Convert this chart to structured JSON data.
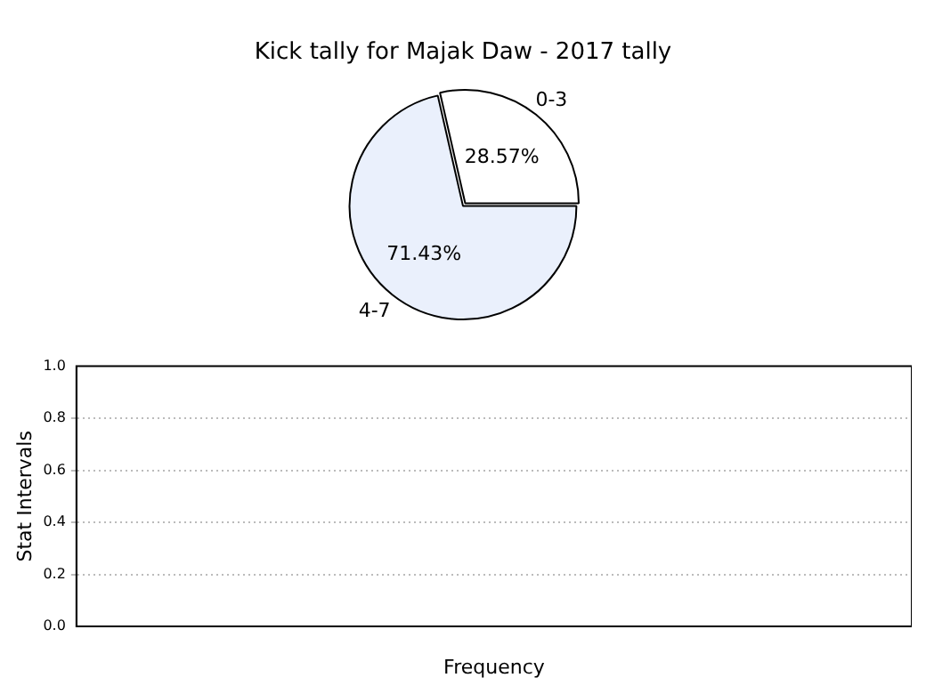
{
  "chart_data": [
    {
      "type": "pie",
      "title": "Kick tally for Majak Daw - 2017 tally",
      "categories": [
        "0-3",
        "4-7"
      ],
      "values": [
        28.57,
        71.43
      ],
      "colors": [
        "#ffffff",
        "#eaf0fc"
      ],
      "value_labels": [
        "28.57%",
        "71.43%"
      ],
      "legend": false
    },
    {
      "type": "bar",
      "categories": [
        null
      ],
      "values": [
        null
      ],
      "xlabel": "Frequency",
      "ylabel": "Stat Intervals",
      "ylim": [
        0,
        1
      ],
      "yticks": [
        {
          "value": 0,
          "label": "0.0"
        },
        0.2,
        0.4,
        0.6,
        0.8,
        {
          "value": 1,
          "label": "1.0"
        }
      ],
      "grid": "y",
      "legend": false
    }
  ]
}
